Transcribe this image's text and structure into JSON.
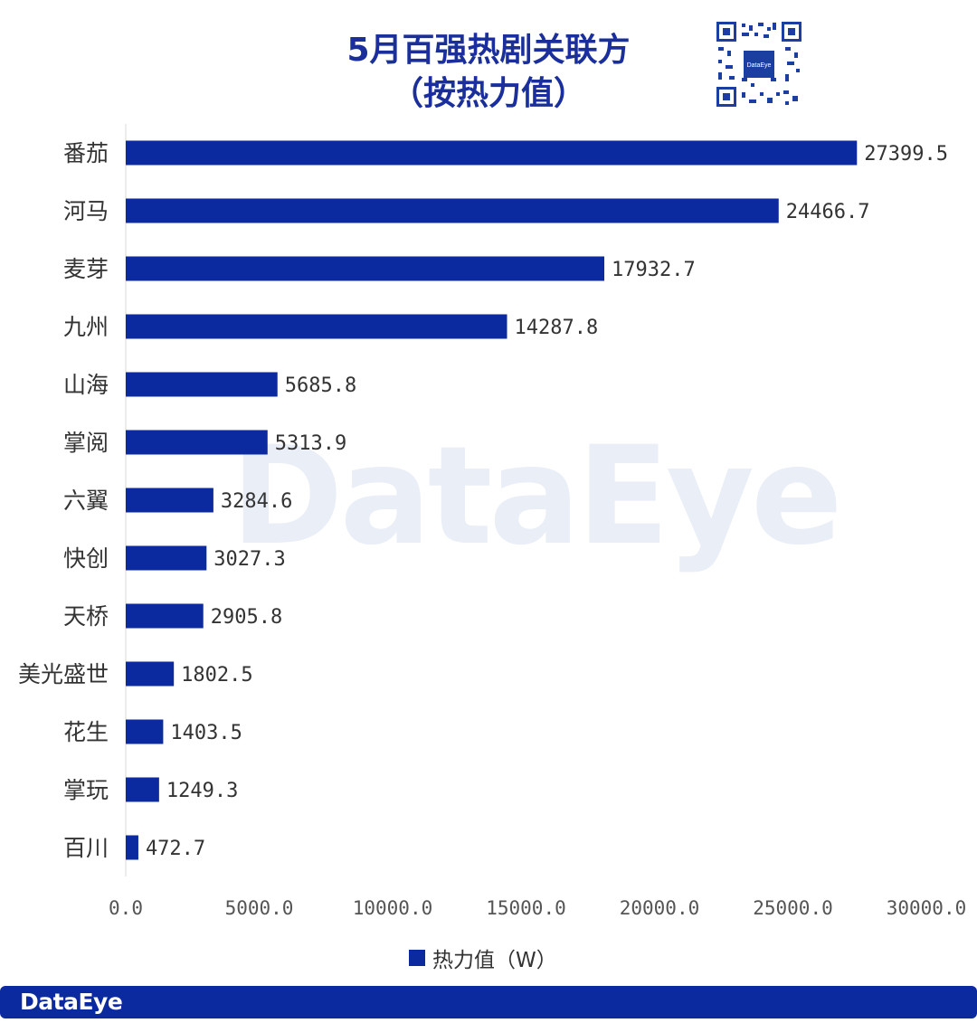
{
  "title_line1": "5月百强热剧关联方",
  "title_line2": "（按热力值）",
  "watermark": "DataEye",
  "qr_label": "DataEye",
  "footer_brand": "DataEye",
  "colors": {
    "bar": "#0b2a9f",
    "title": "#1a2f9c"
  },
  "chart_data": {
    "type": "bar",
    "orientation": "horizontal",
    "title": "5月百强热剧关联方（按热力值）",
    "categories": [
      "番茄",
      "河马",
      "麦芽",
      "九州",
      "山海",
      "掌阅",
      "六翼",
      "快创",
      "天桥",
      "美光盛世",
      "花生",
      "掌玩",
      "百川"
    ],
    "series": [
      {
        "name": "热力值（W）",
        "values": [
          27399.5,
          24466.7,
          17932.7,
          14287.8,
          5685.8,
          5313.9,
          3284.6,
          3027.3,
          2905.8,
          1802.5,
          1403.5,
          1249.3,
          472.7
        ],
        "value_labels": [
          "27399.5",
          "24466.7",
          "17932.7",
          "14287.8",
          "5685.8",
          "5313.9",
          "3284.6",
          "3027.3",
          "2905.8",
          "1802.5",
          "1403.5",
          "1249.3",
          "472.7"
        ]
      }
    ],
    "xlim": [
      0,
      30000
    ],
    "x_ticks": [
      0,
      5000,
      10000,
      15000,
      20000,
      25000,
      30000
    ],
    "x_tick_labels": [
      "0.0",
      "5000.0",
      "10000.0",
      "15000.0",
      "20000.0",
      "25000.0",
      "30000.0"
    ],
    "legend": "bottom",
    "grid": false
  }
}
